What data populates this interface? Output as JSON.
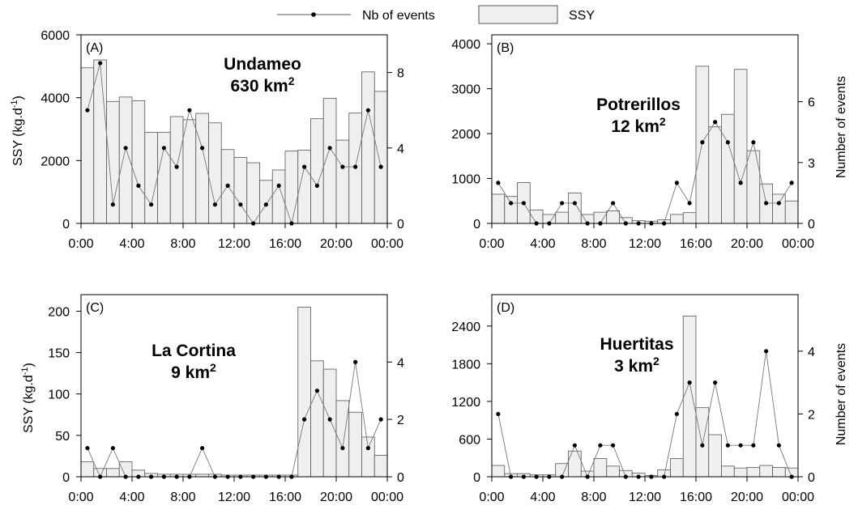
{
  "legend": {
    "line_label": "Nb of events",
    "bar_label": "SSY"
  },
  "y_left_label": "SSY (kg.d",
  "y_left_sup": "-1",
  "y_left_close": ")",
  "y_right_label": "Number of events",
  "colors": {
    "bar_fill": "#efefef",
    "bar_stroke": "#555555",
    "line": "#777777",
    "marker": "#000000"
  },
  "chart_data": [
    {
      "type": "bar",
      "panel": "(A)",
      "title": "Undameo",
      "area": "630 km",
      "area_sup": "2",
      "x_tick_labels": [
        "0:00",
        "4:00",
        "8:00",
        "12:00",
        "16:00",
        "20:00",
        "00:00"
      ],
      "hours": [
        0,
        1,
        2,
        3,
        4,
        5,
        6,
        7,
        8,
        9,
        10,
        11,
        12,
        13,
        14,
        15,
        16,
        17,
        18,
        19,
        20,
        21,
        22,
        23
      ],
      "ylim_left": [
        0,
        6000
      ],
      "yticks_left": [
        0,
        2000,
        4000,
        6000
      ],
      "ylim_right": [
        0,
        10
      ],
      "yticks_right": [
        0,
        4,
        8
      ],
      "series": [
        {
          "name": "SSY",
          "axis": "left",
          "values": [
            4950,
            5200,
            3880,
            4020,
            3900,
            2900,
            2900,
            3400,
            3300,
            3500,
            3200,
            2350,
            2100,
            1930,
            1370,
            1700,
            2300,
            2330,
            3330,
            3980,
            2650,
            3510,
            4820,
            4200
          ]
        },
        {
          "name": "Nb of events",
          "axis": "right",
          "values": [
            6,
            8.5,
            1,
            4,
            2,
            1,
            4,
            3,
            6,
            4,
            1,
            2,
            1,
            0,
            1,
            2,
            0,
            3,
            2,
            4,
            3,
            3,
            6,
            3
          ]
        }
      ]
    },
    {
      "type": "bar",
      "panel": "(B)",
      "title": "Potrerillos",
      "area": "12 km",
      "area_sup": "2",
      "x_tick_labels": [
        "0:00",
        "4:00",
        "8:00",
        "12:00",
        "16:00",
        "20:00",
        "00:00"
      ],
      "hours": [
        0,
        1,
        2,
        3,
        4,
        5,
        6,
        7,
        8,
        9,
        10,
        11,
        12,
        13,
        14,
        15,
        16,
        17,
        18,
        19,
        20,
        21,
        22,
        23
      ],
      "ylim_left": [
        0,
        4200
      ],
      "yticks_left": [
        0,
        1000,
        2000,
        3000,
        4000
      ],
      "ylim_right": [
        0,
        9.3
      ],
      "yticks_right": [
        0,
        3,
        6
      ],
      "series": [
        {
          "name": "SSY",
          "axis": "left",
          "values": [
            650,
            600,
            910,
            300,
            200,
            250,
            680,
            200,
            250,
            280,
            130,
            60,
            50,
            80,
            200,
            240,
            3500,
            2150,
            2430,
            3430,
            1620,
            880,
            650,
            500
          ]
        },
        {
          "name": "Nb of events",
          "axis": "right",
          "values": [
            2,
            1,
            1,
            0,
            0,
            1,
            1,
            0,
            0,
            1,
            0,
            0,
            0,
            0,
            2,
            1,
            4,
            5,
            4,
            2,
            4,
            1,
            1,
            2
          ]
        }
      ]
    },
    {
      "type": "bar",
      "panel": "(C)",
      "title": "La Cortina",
      "area": "9 km",
      "area_sup": "2",
      "x_tick_labels": [
        "0:00",
        "4:00",
        "8:00",
        "12:00",
        "16:00",
        "20:00",
        "00:00"
      ],
      "hours": [
        0,
        1,
        2,
        3,
        4,
        5,
        6,
        7,
        8,
        9,
        10,
        11,
        12,
        13,
        14,
        15,
        16,
        17,
        18,
        19,
        20,
        21,
        22,
        23
      ],
      "ylim_left": [
        0,
        220
      ],
      "yticks_left": [
        0,
        50,
        100,
        150,
        200
      ],
      "ylim_right": [
        0,
        6.35
      ],
      "yticks_right": [
        0,
        2,
        4
      ],
      "series": [
        {
          "name": "SSY",
          "axis": "left",
          "values": [
            18,
            10,
            10,
            18,
            8,
            4,
            3,
            3,
            3,
            3,
            3,
            2,
            2,
            2,
            2,
            2,
            2,
            205,
            140,
            130,
            92,
            78,
            48,
            26
          ]
        },
        {
          "name": "Nb of events",
          "axis": "right",
          "values": [
            1,
            0,
            1,
            0,
            0,
            0,
            0,
            0,
            0,
            1,
            0,
            0,
            0,
            0,
            0,
            0,
            0,
            2,
            3,
            2,
            1,
            4,
            1,
            2
          ]
        }
      ]
    },
    {
      "type": "bar",
      "panel": "(D)",
      "title": "Huertitas",
      "area": "3 km",
      "area_sup": "2",
      "x_tick_labels": [
        "0:00",
        "4:00",
        "8:00",
        "12:00",
        "16:00",
        "20:00",
        "00:00"
      ],
      "hours": [
        0,
        1,
        2,
        3,
        4,
        5,
        6,
        7,
        8,
        9,
        10,
        11,
        12,
        13,
        14,
        15,
        16,
        17,
        18,
        19,
        20,
        21,
        22,
        23
      ],
      "ylim_left": [
        0,
        2900
      ],
      "yticks_left": [
        0,
        600,
        1200,
        1800,
        2400
      ],
      "ylim_right": [
        0,
        5.8
      ],
      "yticks_right": [
        0,
        2,
        4
      ],
      "series": [
        {
          "name": "SSY",
          "axis": "left",
          "values": [
            180,
            50,
            50,
            30,
            30,
            210,
            410,
            90,
            290,
            170,
            100,
            60,
            20,
            110,
            290,
            2560,
            1100,
            670,
            170,
            140,
            150,
            180,
            150,
            140
          ]
        },
        {
          "name": "Nb of events",
          "axis": "right",
          "values": [
            2,
            0,
            0,
            0,
            0,
            0,
            1,
            0,
            1,
            1,
            0,
            0,
            0,
            0,
            2,
            3,
            1,
            3,
            1,
            1,
            1,
            4,
            1,
            0
          ]
        }
      ]
    }
  ]
}
